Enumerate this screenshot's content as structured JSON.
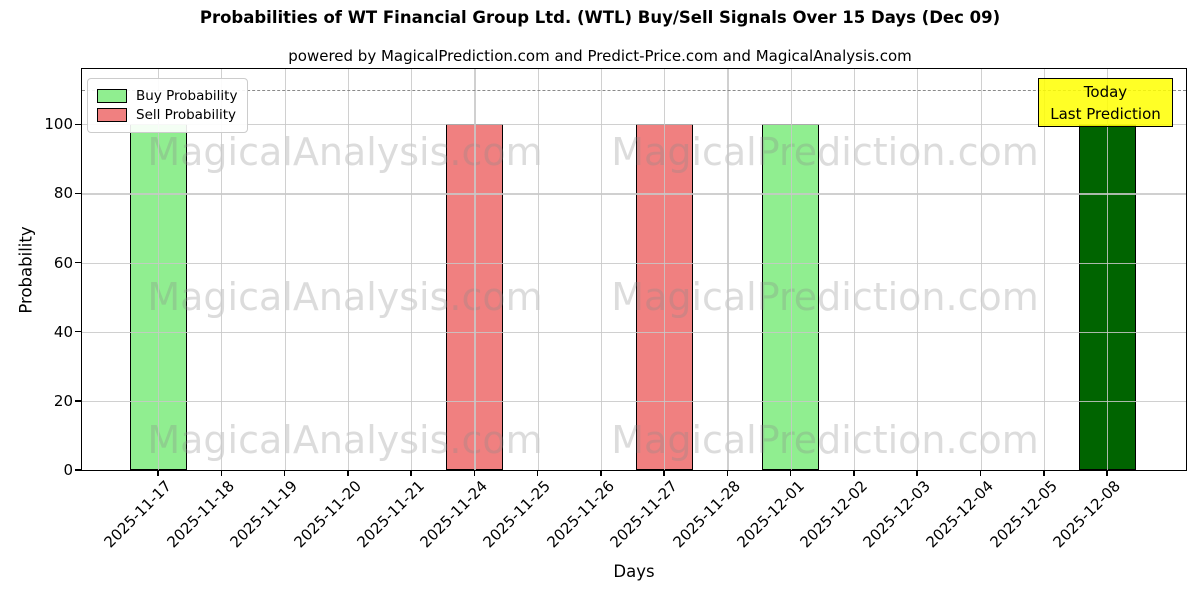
{
  "chart_data": {
    "type": "bar",
    "title": "Probabilities of WT Financial Group Ltd. (WTL) Buy/Sell Signals Over 15 Days (Dec 09)",
    "subtitle": "powered by MagicalPrediction.com and Predict-Price.com and MagicalAnalysis.com",
    "xlabel": "Days",
    "ylabel": "Probability",
    "ylim": [
      0,
      116
    ],
    "yticks": [
      0,
      20,
      40,
      60,
      80,
      100
    ],
    "grid": true,
    "dashed_line_y": 110,
    "categories": [
      "2025-11-17",
      "2025-11-18",
      "2025-11-19",
      "2025-11-20",
      "2025-11-21",
      "2025-11-24",
      "2025-11-25",
      "2025-11-26",
      "2025-11-27",
      "2025-11-28",
      "2025-12-01",
      "2025-12-02",
      "2025-12-03",
      "2025-12-04",
      "2025-12-05",
      "2025-12-08"
    ],
    "bars": [
      {
        "category": "2025-11-17",
        "value": 100,
        "signal": "buy",
        "color": "#90EE90"
      },
      {
        "category": "2025-11-18",
        "value": 0,
        "signal": "none",
        "color": ""
      },
      {
        "category": "2025-11-19",
        "value": 0,
        "signal": "none",
        "color": ""
      },
      {
        "category": "2025-11-20",
        "value": 0,
        "signal": "none",
        "color": ""
      },
      {
        "category": "2025-11-21",
        "value": 0,
        "signal": "none",
        "color": ""
      },
      {
        "category": "2025-11-24",
        "value": 100,
        "signal": "sell",
        "color": "#F08080"
      },
      {
        "category": "2025-11-25",
        "value": 0,
        "signal": "none",
        "color": ""
      },
      {
        "category": "2025-11-26",
        "value": 0,
        "signal": "none",
        "color": ""
      },
      {
        "category": "2025-11-27",
        "value": 100,
        "signal": "sell",
        "color": "#F08080"
      },
      {
        "category": "2025-11-28",
        "value": 0,
        "signal": "none",
        "color": ""
      },
      {
        "category": "2025-12-01",
        "value": 100,
        "signal": "buy",
        "color": "#90EE90"
      },
      {
        "category": "2025-12-02",
        "value": 0,
        "signal": "none",
        "color": ""
      },
      {
        "category": "2025-12-03",
        "value": 0,
        "signal": "none",
        "color": ""
      },
      {
        "category": "2025-12-04",
        "value": 0,
        "signal": "none",
        "color": ""
      },
      {
        "category": "2025-12-05",
        "value": 0,
        "signal": "none",
        "color": ""
      },
      {
        "category": "2025-12-08",
        "value": 100,
        "signal": "buy-today",
        "color": "#006400"
      }
    ],
    "legend": {
      "position": "upper-left",
      "entries": [
        {
          "label": "Buy Probability",
          "color": "#90EE90"
        },
        {
          "label": "Sell Probability",
          "color": "#F08080"
        }
      ]
    },
    "annotation": {
      "lines": [
        "Today",
        "Last Prediction"
      ],
      "bg_color": "#FFFF00",
      "target_category": "2025-12-08"
    },
    "colors": {
      "buy": "#90EE90",
      "sell": "#F08080",
      "today_last_prediction": "#006400",
      "bar_edge": "#000000",
      "annotation_bg": "#FFFF00"
    },
    "watermarks": {
      "left_text": "MagicalAnalysis.com",
      "right_text": "MagicalPrediction.com"
    }
  }
}
